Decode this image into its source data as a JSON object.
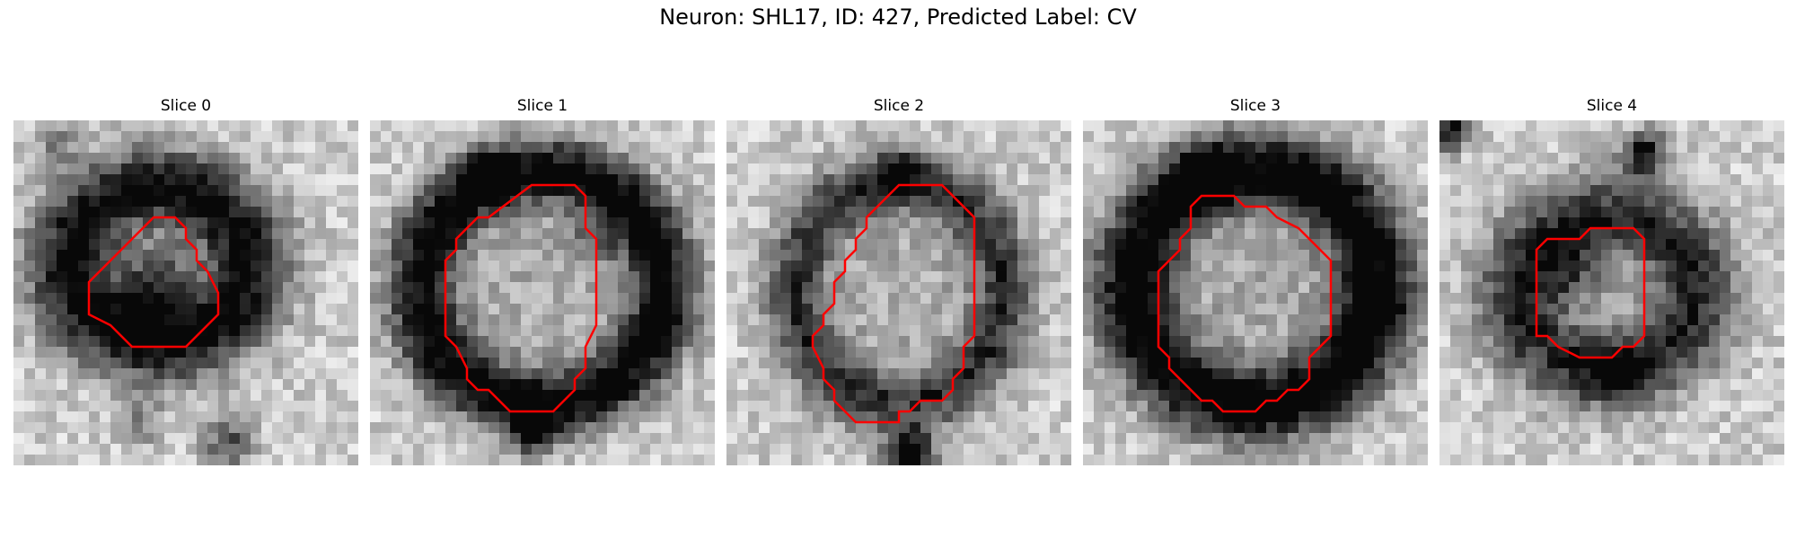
{
  "figure": {
    "title": "Neuron: SHL17, ID: 427, Predicted Label: CV",
    "contour_color": "#ff0000",
    "colormap": "gray"
  },
  "panels": [
    {
      "title": "Slice 0"
    },
    {
      "title": "Slice 1"
    },
    {
      "title": "Slice 2"
    },
    {
      "title": "Slice 3"
    },
    {
      "title": "Slice 4"
    }
  ]
}
